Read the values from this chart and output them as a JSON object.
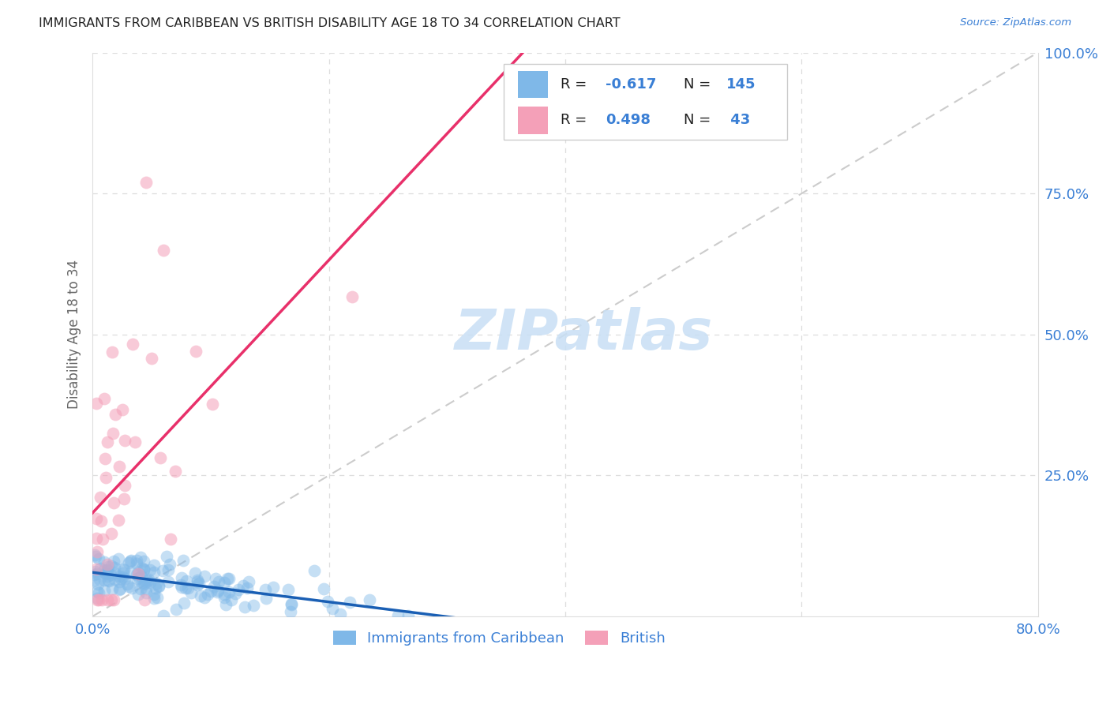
{
  "title": "IMMIGRANTS FROM CARIBBEAN VS BRITISH DISABILITY AGE 18 TO 34 CORRELATION CHART",
  "source": "Source: ZipAtlas.com",
  "ylabel_left": "Disability Age 18 to 34",
  "blue_scatter_color": "#7fb8e8",
  "pink_scatter_color": "#f4a0b8",
  "blue_line_color": "#1a5fb4",
  "pink_line_color": "#e8306a",
  "diag_line_color": "#cccccc",
  "background_color": "#ffffff",
  "watermark_color": "#c8dff5",
  "blue_R": -0.617,
  "blue_N": 145,
  "pink_R": 0.498,
  "pink_N": 43,
  "xlim": [
    0.0,
    0.8
  ],
  "ylim": [
    0.0,
    1.0
  ]
}
